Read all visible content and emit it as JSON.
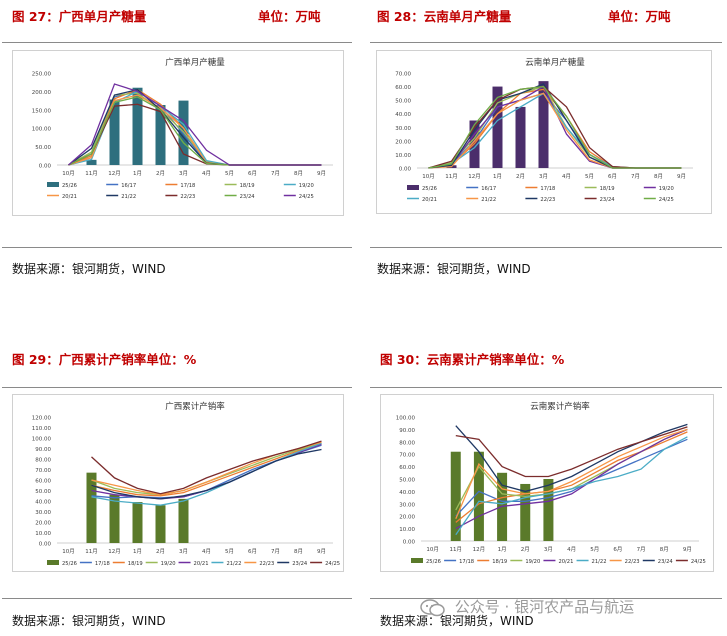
{
  "figures": [
    {
      "title": "图 27：广西单月产糖量",
      "unit": "单位：万吨",
      "source": "数据来源：银河期货，WIND"
    },
    {
      "title": "图 28：云南单月产糖量",
      "unit": "单位：万吨",
      "source": "数据来源：银河期货，WIND"
    },
    {
      "title": "图 29：广西累计产销率单位：%",
      "unit": "",
      "source": "数据来源：银河期货，WIND"
    },
    {
      "title": "图 30：云南累计产销率单位：%",
      "unit": "",
      "source": "数据来源：银河期货，WIND"
    }
  ],
  "watermark": "公众号 · 银河农产品与航运",
  "chart_data": [
    {
      "id": "gx_output",
      "type": "bar",
      "title": "广西单月产糖量",
      "categories": [
        "10月",
        "11月",
        "12月",
        "1月",
        "2月",
        "3月",
        "4月",
        "5月",
        "6月",
        "7月",
        "8月",
        "9月"
      ],
      "ylim": [
        0,
        250
      ],
      "yticks": [
        "0.00",
        "50.00",
        "100.00",
        "150.00",
        "200.00",
        "250.00"
      ],
      "bar_series": {
        "name": "25/26",
        "color": "#2e6f7e",
        "values": [
          0,
          14,
          178,
          210,
          163,
          175,
          null,
          null,
          null,
          null,
          null,
          null
        ]
      },
      "series": [
        {
          "name": "16/17",
          "color": "#4472c4",
          "values": [
            0,
            20,
            185,
            200,
            160,
            85,
            5,
            0,
            0,
            0,
            0,
            0
          ]
        },
        {
          "name": "17/18",
          "color": "#ed7d31",
          "values": [
            0,
            25,
            180,
            205,
            165,
            100,
            8,
            0,
            0,
            0,
            0,
            0
          ]
        },
        {
          "name": "18/19",
          "color": "#9bbb59",
          "values": [
            0,
            35,
            190,
            195,
            150,
            90,
            10,
            0,
            0,
            0,
            0,
            0
          ]
        },
        {
          "name": "19/20",
          "color": "#4bacc6",
          "values": [
            0,
            15,
            170,
            200,
            160,
            110,
            12,
            0,
            0,
            0,
            0,
            0
          ]
        },
        {
          "name": "20/21",
          "color": "#f79646",
          "values": [
            0,
            20,
            175,
            190,
            155,
            100,
            6,
            0,
            0,
            0,
            0,
            0
          ]
        },
        {
          "name": "21/22",
          "color": "#1f3864",
          "values": [
            0,
            45,
            190,
            205,
            150,
            75,
            5,
            0,
            0,
            0,
            0,
            0
          ]
        },
        {
          "name": "22/23",
          "color": "#7b2c2c",
          "values": [
            0,
            30,
            160,
            165,
            145,
            30,
            3,
            0,
            0,
            0,
            0,
            0
          ]
        },
        {
          "name": "23/24",
          "color": "#70ad47",
          "values": [
            0,
            30,
            170,
            185,
            150,
            60,
            4,
            0,
            0,
            0,
            0,
            0
          ]
        },
        {
          "name": "24/25",
          "color": "#7030a0",
          "values": [
            0,
            55,
            220,
            200,
            160,
            120,
            40,
            0,
            0,
            0,
            0,
            0
          ]
        }
      ]
    },
    {
      "id": "yn_output",
      "type": "bar",
      "title": "云南单月产糖量",
      "categories": [
        "10月",
        "11月",
        "12月",
        "1月",
        "2月",
        "3月",
        "4月",
        "5月",
        "6月",
        "7月",
        "8月",
        "9月"
      ],
      "ylim": [
        0,
        70
      ],
      "yticks": [
        "0.00",
        "10.00",
        "20.00",
        "30.00",
        "40.00",
        "50.00",
        "60.00",
        "70.00"
      ],
      "bar_series": {
        "name": "25/26",
        "color": "#4b2e6b",
        "values": [
          0,
          2,
          35,
          60,
          45,
          64,
          null,
          null,
          null,
          null,
          null,
          null
        ]
      },
      "series": [
        {
          "name": "16/17",
          "color": "#4472c4",
          "values": [
            0,
            3,
            20,
            45,
            50,
            55,
            35,
            10,
            0,
            0,
            0,
            0
          ]
        },
        {
          "name": "17/18",
          "color": "#ed7d31",
          "values": [
            0,
            2,
            18,
            40,
            55,
            58,
            38,
            12,
            1,
            0,
            0,
            0
          ]
        },
        {
          "name": "18/19",
          "color": "#9bbb59",
          "values": [
            0,
            4,
            22,
            48,
            55,
            60,
            30,
            8,
            0,
            0,
            0,
            0
          ]
        },
        {
          "name": "19/20",
          "color": "#7030a0",
          "values": [
            0,
            2,
            25,
            45,
            50,
            60,
            25,
            5,
            0,
            0,
            0,
            0
          ]
        },
        {
          "name": "20/21",
          "color": "#4bacc6",
          "values": [
            0,
            3,
            15,
            35,
            45,
            55,
            30,
            10,
            1,
            0,
            0,
            0
          ]
        },
        {
          "name": "21/22",
          "color": "#f79646",
          "values": [
            0,
            1,
            20,
            40,
            50,
            55,
            28,
            6,
            0,
            0,
            0,
            0
          ]
        },
        {
          "name": "22/23",
          "color": "#1f3864",
          "values": [
            0,
            2,
            28,
            50,
            55,
            62,
            35,
            8,
            0,
            0,
            0,
            0
          ]
        },
        {
          "name": "23/24",
          "color": "#7b2c2c",
          "values": [
            0,
            5,
            30,
            50,
            58,
            60,
            45,
            15,
            1,
            0,
            0,
            0
          ]
        },
        {
          "name": "24/25",
          "color": "#70ad47",
          "values": [
            0,
            3,
            32,
            52,
            58,
            60,
            38,
            10,
            0,
            0,
            0,
            0
          ]
        }
      ]
    },
    {
      "id": "gx_ratio",
      "type": "bar",
      "title": "广西累计产销率",
      "categories": [
        "10月",
        "11月",
        "12月",
        "1月",
        "2月",
        "3月",
        "4月",
        "5月",
        "6月",
        "7月",
        "8月",
        "9月"
      ],
      "ylim": [
        0,
        120
      ],
      "yticks": [
        "0.00",
        "10.00",
        "20.00",
        "30.00",
        "40.00",
        "50.00",
        "60.00",
        "70.00",
        "80.00",
        "90.00",
        "100.00",
        "110.00",
        "120.00"
      ],
      "bar_series": {
        "name": "25/26",
        "color": "#5a7a2a",
        "values": [
          null,
          67,
          46,
          39,
          36,
          42,
          null,
          null,
          null,
          null,
          null,
          null
        ]
      },
      "series": [
        {
          "name": "17/18",
          "color": "#4472c4",
          "values": [
            null,
            45,
            43,
            44,
            43,
            44,
            50,
            60,
            70,
            78,
            86,
            93
          ]
        },
        {
          "name": "18/19",
          "color": "#ed7d31",
          "values": [
            null,
            55,
            50,
            46,
            45,
            48,
            56,
            64,
            72,
            80,
            88,
            95
          ]
        },
        {
          "name": "19/20",
          "color": "#9bbb59",
          "values": [
            null,
            60,
            52,
            48,
            46,
            50,
            58,
            66,
            74,
            82,
            89,
            95
          ]
        },
        {
          "name": "20/21",
          "color": "#7030a0",
          "values": [
            null,
            50,
            46,
            44,
            42,
            44,
            50,
            58,
            68,
            78,
            86,
            94
          ]
        },
        {
          "name": "21/22",
          "color": "#4bacc6",
          "values": [
            null,
            44,
            40,
            38,
            36,
            40,
            48,
            58,
            68,
            78,
            87,
            95
          ]
        },
        {
          "name": "22/23",
          "color": "#f79646",
          "values": [
            null,
            60,
            55,
            50,
            46,
            50,
            58,
            67,
            76,
            84,
            90,
            96
          ]
        },
        {
          "name": "23/24",
          "color": "#1f3864",
          "values": [
            null,
            55,
            48,
            44,
            42,
            45,
            50,
            58,
            68,
            78,
            85,
            89
          ]
        },
        {
          "name": "24/25",
          "color": "#7b2c2c",
          "values": [
            null,
            82,
            62,
            52,
            47,
            52,
            62,
            70,
            78,
            84,
            90,
            97
          ]
        }
      ]
    },
    {
      "id": "yn_ratio",
      "type": "bar",
      "title": "云南累计产销率",
      "categories": [
        "10月",
        "11月",
        "12月",
        "1月",
        "2月",
        "3月",
        "4月",
        "5月",
        "6月",
        "7月",
        "8月",
        "9月"
      ],
      "ylim": [
        0,
        100
      ],
      "yticks": [
        "0.00",
        "10.00",
        "20.00",
        "30.00",
        "40.00",
        "50.00",
        "60.00",
        "70.00",
        "80.00",
        "90.00",
        "100.00"
      ],
      "bar_series": {
        "name": "25/26",
        "color": "#5a7a2a",
        "values": [
          null,
          72,
          72,
          55,
          46,
          50,
          null,
          null,
          null,
          null,
          null,
          null
        ]
      },
      "series": [
        {
          "name": "17/18",
          "color": "#4472c4",
          "values": [
            null,
            20,
            40,
            32,
            32,
            35,
            40,
            50,
            58,
            66,
            74,
            82
          ]
        },
        {
          "name": "18/19",
          "color": "#ed7d31",
          "values": [
            null,
            15,
            30,
            35,
            38,
            40,
            45,
            55,
            65,
            72,
            80,
            88
          ]
        },
        {
          "name": "19/20",
          "color": "#9bbb59",
          "values": [
            null,
            25,
            60,
            38,
            36,
            38,
            42,
            52,
            62,
            72,
            82,
            90
          ]
        },
        {
          "name": "20/21",
          "color": "#7030a0",
          "values": [
            null,
            10,
            20,
            28,
            30,
            32,
            38,
            50,
            62,
            72,
            82,
            90
          ]
        },
        {
          "name": "21/22",
          "color": "#4bacc6",
          "values": [
            null,
            5,
            32,
            30,
            35,
            38,
            42,
            48,
            52,
            58,
            74,
            84
          ]
        },
        {
          "name": "22/23",
          "color": "#f79646",
          "values": [
            null,
            18,
            62,
            42,
            38,
            40,
            48,
            58,
            68,
            76,
            84,
            90
          ]
        },
        {
          "name": "23/24",
          "color": "#1f3864",
          "values": [
            null,
            93,
            72,
            45,
            40,
            45,
            52,
            62,
            72,
            80,
            88,
            94
          ]
        },
        {
          "name": "24/25",
          "color": "#7b2c2c",
          "values": [
            null,
            85,
            82,
            60,
            52,
            52,
            58,
            66,
            74,
            80,
            86,
            92
          ]
        }
      ]
    }
  ]
}
